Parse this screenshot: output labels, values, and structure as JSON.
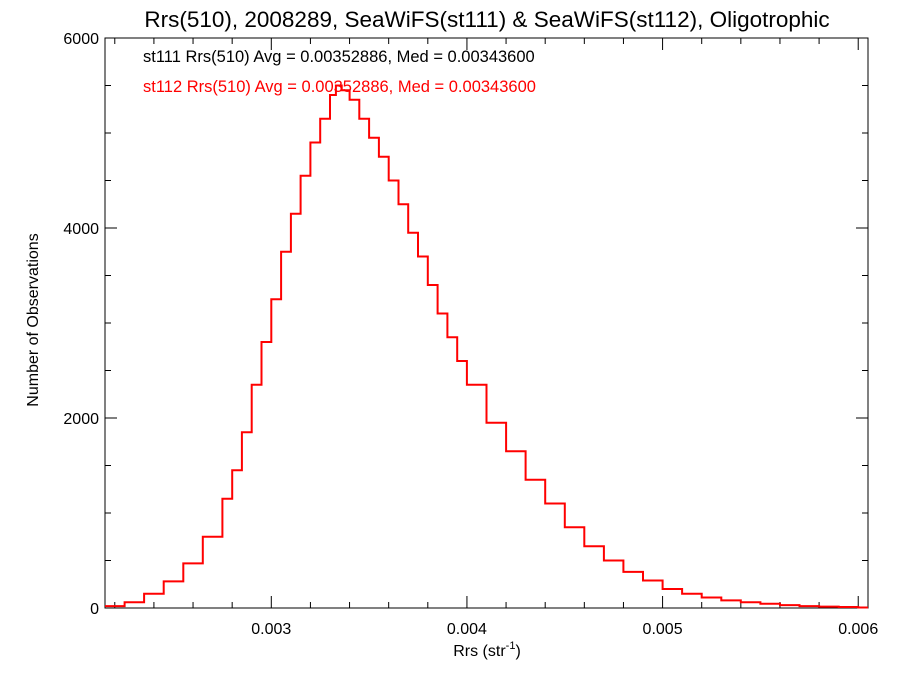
{
  "chart_data": {
    "type": "step",
    "title": "Rrs(510), 2008289, SeaWiFS(st111) & SeaWiFS(st112), Oligotrophic",
    "xlabel": "Rrs (str",
    "xlabel_sup": "-1",
    "xlabel_close": ")",
    "ylabel": "Number of Observations",
    "xlim": [
      0.00215,
      0.00605
    ],
    "ylim": [
      0,
      6000
    ],
    "xticks": [
      {
        "value": 0.003,
        "label": "0.003"
      },
      {
        "value": 0.004,
        "label": "0.004"
      },
      {
        "value": 0.005,
        "label": "0.005"
      },
      {
        "value": 0.006,
        "label": "0.006"
      }
    ],
    "yticks": [
      {
        "value": 0,
        "label": "0"
      },
      {
        "value": 2000,
        "label": "2000"
      },
      {
        "value": 4000,
        "label": "4000"
      },
      {
        "value": 6000,
        "label": "6000"
      }
    ],
    "annotations": [
      {
        "text": "st111 Rrs(510) Avg = 0.00352886, Med = 0.00343600",
        "color": "#000000"
      },
      {
        "text": "st112 Rrs(510) Avg = 0.00352886, Med = 0.00343600",
        "color": "#ff0000"
      }
    ],
    "series": [
      {
        "color": "#ff0000",
        "x": [
          0.00215,
          0.00225,
          0.00235,
          0.00245,
          0.00255,
          0.00265,
          0.00275,
          0.0028,
          0.00285,
          0.0029,
          0.00295,
          0.003,
          0.00305,
          0.0031,
          0.00315,
          0.0032,
          0.00325,
          0.0033,
          0.00333,
          0.00336,
          0.0034,
          0.00345,
          0.0035,
          0.00355,
          0.0036,
          0.00365,
          0.0037,
          0.00375,
          0.0038,
          0.00385,
          0.0039,
          0.00395,
          0.004,
          0.0041,
          0.0042,
          0.0043,
          0.0044,
          0.0045,
          0.0046,
          0.0047,
          0.0048,
          0.0049,
          0.005,
          0.0051,
          0.0052,
          0.0053,
          0.0054,
          0.0055,
          0.0056,
          0.0057,
          0.0058,
          0.0059,
          0.006,
          0.00605
        ],
        "y": [
          20,
          60,
          150,
          280,
          470,
          750,
          1150,
          1450,
          1850,
          2350,
          2800,
          3250,
          3750,
          4150,
          4550,
          4900,
          5150,
          5400,
          5500,
          5450,
          5350,
          5150,
          4950,
          4750,
          4500,
          4250,
          3950,
          3700,
          3400,
          3100,
          2850,
          2600,
          2350,
          1950,
          1650,
          1350,
          1100,
          850,
          650,
          500,
          380,
          290,
          200,
          150,
          110,
          80,
          60,
          45,
          30,
          20,
          15,
          10,
          5,
          5
        ]
      }
    ]
  }
}
